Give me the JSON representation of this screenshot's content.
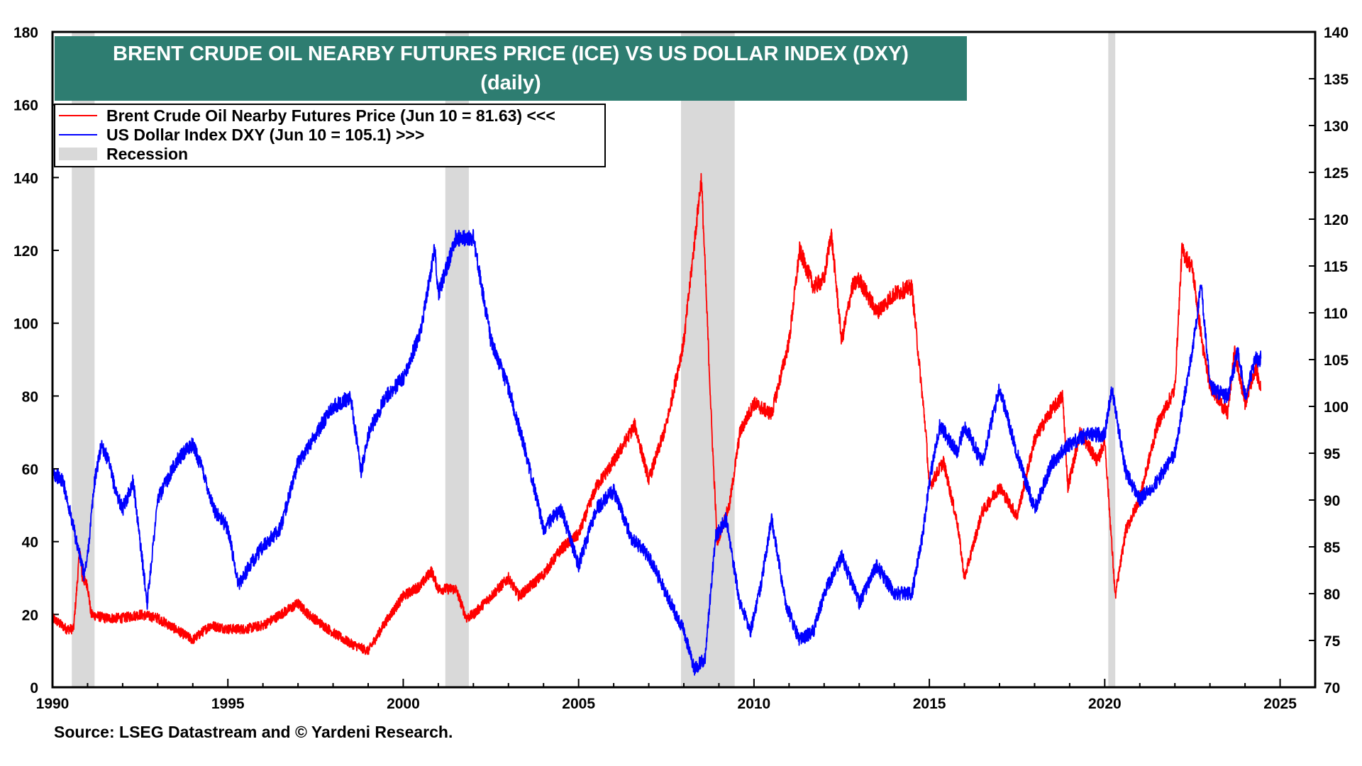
{
  "chart_data": {
    "type": "line",
    "title": "BRENT CRUDE OIL NEARBY FUTURES PRICE (ICE) VS US DOLLAR INDEX (DXY)",
    "subtitle": "(daily)",
    "source": "Source: LSEG Datastream and © Yardeni Research.",
    "x_range": [
      1990,
      2026
    ],
    "x_ticks": [
      "1990",
      "1995",
      "2000",
      "2005",
      "2010",
      "2015",
      "2020",
      "2025"
    ],
    "x_tick_values": [
      1990,
      1995,
      2000,
      2005,
      2010,
      2015,
      2020,
      2025
    ],
    "y_left": {
      "range": [
        0,
        180
      ],
      "ticks": [
        "0",
        "20",
        "40",
        "60",
        "80",
        "100",
        "120",
        "140",
        "160",
        "180"
      ],
      "tick_values": [
        0,
        20,
        40,
        60,
        80,
        100,
        120,
        140,
        160,
        180
      ]
    },
    "y_right": {
      "range": [
        70,
        140
      ],
      "ticks": [
        "70",
        "75",
        "80",
        "85",
        "90",
        "95",
        "100",
        "105",
        "110",
        "115",
        "120",
        "125",
        "130",
        "135",
        "140"
      ],
      "tick_values": [
        70,
        75,
        80,
        85,
        90,
        95,
        100,
        105,
        110,
        115,
        120,
        125,
        130,
        135,
        140
      ]
    },
    "legend": [
      {
        "label": "Brent Crude Oil Nearby Futures Price (Jun 10 = 81.63) <<<",
        "color": "#ff0000",
        "kind": "line"
      },
      {
        "label": "US Dollar Index DXY (Jun 10 = 105.1) >>>",
        "color": "#0000ff",
        "kind": "line"
      },
      {
        "label": "Recession",
        "color": "#d9d9d9",
        "kind": "box"
      }
    ],
    "recessions": [
      [
        1990.55,
        1991.2
      ],
      [
        2001.2,
        2001.87
      ],
      [
        2007.92,
        2009.45
      ],
      [
        2020.1,
        2020.3
      ]
    ],
    "series": [
      {
        "name": "Brent Crude Oil Nearby Futures Price",
        "axis": "left",
        "color": "#ff0000",
        "points": [
          [
            1990.0,
            19
          ],
          [
            1990.4,
            16
          ],
          [
            1990.6,
            16
          ],
          [
            1990.7,
            28
          ],
          [
            1990.78,
            38
          ],
          [
            1990.85,
            30
          ],
          [
            1991.0,
            28
          ],
          [
            1991.1,
            20
          ],
          [
            1991.5,
            19
          ],
          [
            1992.0,
            19
          ],
          [
            1992.5,
            20
          ],
          [
            1993.0,
            19
          ],
          [
            1993.5,
            16
          ],
          [
            1994.0,
            13
          ],
          [
            1994.5,
            17
          ],
          [
            1995.0,
            16
          ],
          [
            1995.5,
            16
          ],
          [
            1996.0,
            17
          ],
          [
            1996.5,
            20
          ],
          [
            1997.0,
            23
          ],
          [
            1997.3,
            20
          ],
          [
            1998.0,
            15
          ],
          [
            1998.5,
            12
          ],
          [
            1999.0,
            10
          ],
          [
            1999.5,
            18
          ],
          [
            2000.0,
            25
          ],
          [
            2000.5,
            28
          ],
          [
            2000.8,
            32
          ],
          [
            2001.0,
            27
          ],
          [
            2001.5,
            27
          ],
          [
            2001.8,
            19
          ],
          [
            2002.0,
            20
          ],
          [
            2002.5,
            25
          ],
          [
            2003.0,
            30
          ],
          [
            2003.3,
            25
          ],
          [
            2004.0,
            31
          ],
          [
            2004.5,
            38
          ],
          [
            2005.0,
            42
          ],
          [
            2005.5,
            55
          ],
          [
            2006.0,
            62
          ],
          [
            2006.6,
            72
          ],
          [
            2007.0,
            57
          ],
          [
            2007.5,
            72
          ],
          [
            2008.0,
            95
          ],
          [
            2008.5,
            140
          ],
          [
            2008.8,
            70
          ],
          [
            2008.95,
            40
          ],
          [
            2009.3,
            50
          ],
          [
            2009.6,
            70
          ],
          [
            2010.0,
            78
          ],
          [
            2010.5,
            75
          ],
          [
            2011.0,
            95
          ],
          [
            2011.3,
            120
          ],
          [
            2011.7,
            110
          ],
          [
            2012.0,
            112
          ],
          [
            2012.2,
            125
          ],
          [
            2012.5,
            95
          ],
          [
            2012.8,
            110
          ],
          [
            2013.0,
            112
          ],
          [
            2013.5,
            103
          ],
          [
            2014.0,
            108
          ],
          [
            2014.5,
            110
          ],
          [
            2014.9,
            70
          ],
          [
            2015.0,
            55
          ],
          [
            2015.4,
            62
          ],
          [
            2015.8,
            45
          ],
          [
            2016.0,
            30
          ],
          [
            2016.5,
            48
          ],
          [
            2017.0,
            55
          ],
          [
            2017.5,
            47
          ],
          [
            2018.0,
            68
          ],
          [
            2018.4,
            75
          ],
          [
            2018.8,
            80
          ],
          [
            2018.95,
            55
          ],
          [
            2019.3,
            70
          ],
          [
            2019.8,
            62
          ],
          [
            2020.0,
            68
          ],
          [
            2020.3,
            25
          ],
          [
            2020.6,
            43
          ],
          [
            2021.0,
            52
          ],
          [
            2021.5,
            72
          ],
          [
            2022.0,
            82
          ],
          [
            2022.2,
            120
          ],
          [
            2022.5,
            115
          ],
          [
            2022.8,
            93
          ],
          [
            2023.0,
            83
          ],
          [
            2023.5,
            75
          ],
          [
            2023.7,
            92
          ],
          [
            2024.0,
            78
          ],
          [
            2024.3,
            88
          ],
          [
            2024.45,
            81.63
          ]
        ]
      },
      {
        "name": "US Dollar Index DXY",
        "axis": "right",
        "color": "#0000ff",
        "points": [
          [
            1990.0,
            93
          ],
          [
            1990.3,
            92
          ],
          [
            1990.6,
            87
          ],
          [
            1990.9,
            82
          ],
          [
            1991.0,
            84
          ],
          [
            1991.2,
            92
          ],
          [
            1991.4,
            96
          ],
          [
            1991.6,
            94
          ],
          [
            1991.8,
            91
          ],
          [
            1992.0,
            89
          ],
          [
            1992.3,
            92
          ],
          [
            1992.7,
            79
          ],
          [
            1993.0,
            90
          ],
          [
            1993.5,
            94
          ],
          [
            1994.0,
            96
          ],
          [
            1994.3,
            93
          ],
          [
            1994.6,
            89
          ],
          [
            1995.0,
            87
          ],
          [
            1995.3,
            81
          ],
          [
            1995.8,
            84
          ],
          [
            1996.0,
            85
          ],
          [
            1996.5,
            87
          ],
          [
            1997.0,
            94
          ],
          [
            1997.5,
            97
          ],
          [
            1998.0,
            100
          ],
          [
            1998.5,
            101
          ],
          [
            1998.8,
            93
          ],
          [
            1999.0,
            97
          ],
          [
            1999.5,
            101
          ],
          [
            2000.0,
            103
          ],
          [
            2000.5,
            108
          ],
          [
            2000.9,
            117
          ],
          [
            2001.0,
            112
          ],
          [
            2001.5,
            118
          ],
          [
            2002.0,
            118
          ],
          [
            2002.5,
            107
          ],
          [
            2003.0,
            102
          ],
          [
            2003.5,
            95
          ],
          [
            2004.0,
            87
          ],
          [
            2004.5,
            89
          ],
          [
            2005.0,
            83
          ],
          [
            2005.5,
            89
          ],
          [
            2006.0,
            91
          ],
          [
            2006.5,
            86
          ],
          [
            2007.0,
            84
          ],
          [
            2007.5,
            80
          ],
          [
            2008.0,
            76
          ],
          [
            2008.3,
            72
          ],
          [
            2008.6,
            73
          ],
          [
            2008.9,
            86
          ],
          [
            2009.2,
            88
          ],
          [
            2009.6,
            79
          ],
          [
            2009.9,
            76
          ],
          [
            2010.2,
            81
          ],
          [
            2010.5,
            88
          ],
          [
            2010.9,
            79
          ],
          [
            2011.3,
            75
          ],
          [
            2011.7,
            76
          ],
          [
            2012.0,
            80
          ],
          [
            2012.5,
            84
          ],
          [
            2013.0,
            79
          ],
          [
            2013.5,
            83
          ],
          [
            2014.0,
            80
          ],
          [
            2014.5,
            80
          ],
          [
            2014.8,
            86
          ],
          [
            2015.0,
            92
          ],
          [
            2015.3,
            98
          ],
          [
            2015.8,
            95
          ],
          [
            2016.0,
            98
          ],
          [
            2016.5,
            94
          ],
          [
            2017.0,
            102
          ],
          [
            2017.5,
            95
          ],
          [
            2018.0,
            89
          ],
          [
            2018.5,
            94
          ],
          [
            2019.0,
            96
          ],
          [
            2019.5,
            97
          ],
          [
            2020.0,
            97
          ],
          [
            2020.2,
            102
          ],
          [
            2020.6,
            93
          ],
          [
            2021.0,
            90
          ],
          [
            2021.5,
            92
          ],
          [
            2022.0,
            95
          ],
          [
            2022.5,
            106
          ],
          [
            2022.75,
            113
          ],
          [
            2023.0,
            102
          ],
          [
            2023.5,
            101
          ],
          [
            2023.8,
            106
          ],
          [
            2024.0,
            101
          ],
          [
            2024.3,
            105
          ],
          [
            2024.45,
            105.1
          ]
        ]
      }
    ]
  }
}
